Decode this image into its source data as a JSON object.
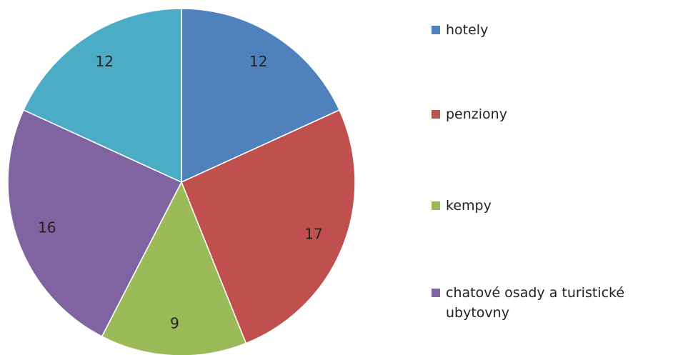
{
  "chart_data": {
    "type": "pie",
    "categories": [
      "hotely",
      "penziony",
      "kempy",
      "chatové osady a turistické ubytovny",
      null
    ],
    "values": [
      12,
      17,
      9,
      16,
      12
    ],
    "colors": [
      "#4f81bd",
      "#c0504d",
      "#9bbb59",
      "#8064a2",
      "#4bacc6"
    ],
    "legend": "right"
  }
}
